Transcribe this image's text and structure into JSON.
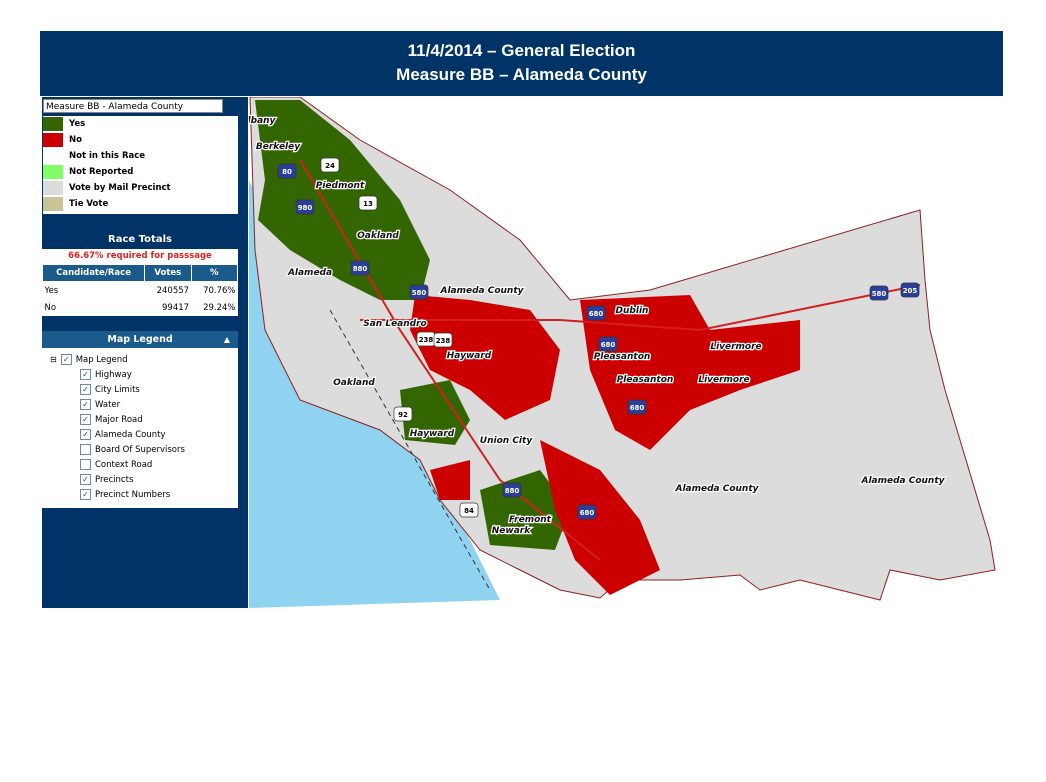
{
  "header": {
    "title_line1": "11/4/2014 – General Election",
    "title_line2": "Measure BB – Alameda County"
  },
  "selector": {
    "value": "Measure BB - Alameda County"
  },
  "legend": {
    "items": [
      {
        "label": "Yes",
        "color": "#336600"
      },
      {
        "label": "No",
        "color": "#cc0000"
      },
      {
        "label": "Not in this Race",
        "color": "#ffffff"
      },
      {
        "label": "Not Reported",
        "color": "#80ff66"
      },
      {
        "label": "Vote by Mail Precinct",
        "color": "#dcdcdc"
      },
      {
        "label": "Tie Vote",
        "color": "#c8c496"
      }
    ]
  },
  "race_totals": {
    "title": "Race Totals",
    "note": "66.67% required for passsage",
    "columns": [
      "Candidate/Race",
      "Votes",
      "%"
    ],
    "rows": [
      [
        "Yes",
        240557,
        "70.76%"
      ],
      [
        "No",
        99417,
        "29.24%"
      ]
    ]
  },
  "map_legend": {
    "title": "Map Legend",
    "root": "Map Legend",
    "layers": [
      {
        "label": "Highway",
        "checked": true
      },
      {
        "label": "City Limits",
        "checked": true
      },
      {
        "label": "Water",
        "checked": true
      },
      {
        "label": "Major Road",
        "checked": true
      },
      {
        "label": "Alameda County",
        "checked": true
      },
      {
        "label": "Board Of Supervisors",
        "checked": false
      },
      {
        "label": "Context Road",
        "checked": false
      },
      {
        "label": "Precincts",
        "checked": true
      },
      {
        "label": "Precinct Numbers",
        "checked": true
      }
    ]
  },
  "map": {
    "places": [
      "Albany",
      "Berkeley",
      "Piedmont",
      "Oakland",
      "Alameda",
      "Alameda County",
      "San Leandro",
      "Hayward",
      "Dublin",
      "Pleasanton",
      "Livermore",
      "Pleasanton",
      "Livermore",
      "Oakland",
      "Hayward",
      "Union City",
      "Alameda County",
      "Alameda County",
      "Fremont",
      "Newark"
    ],
    "shields": [
      "80",
      "24",
      "980",
      "13",
      "880",
      "580",
      "238",
      "238",
      "680",
      "680",
      "680",
      "92",
      "880",
      "84",
      "680",
      "580",
      "205"
    ]
  }
}
